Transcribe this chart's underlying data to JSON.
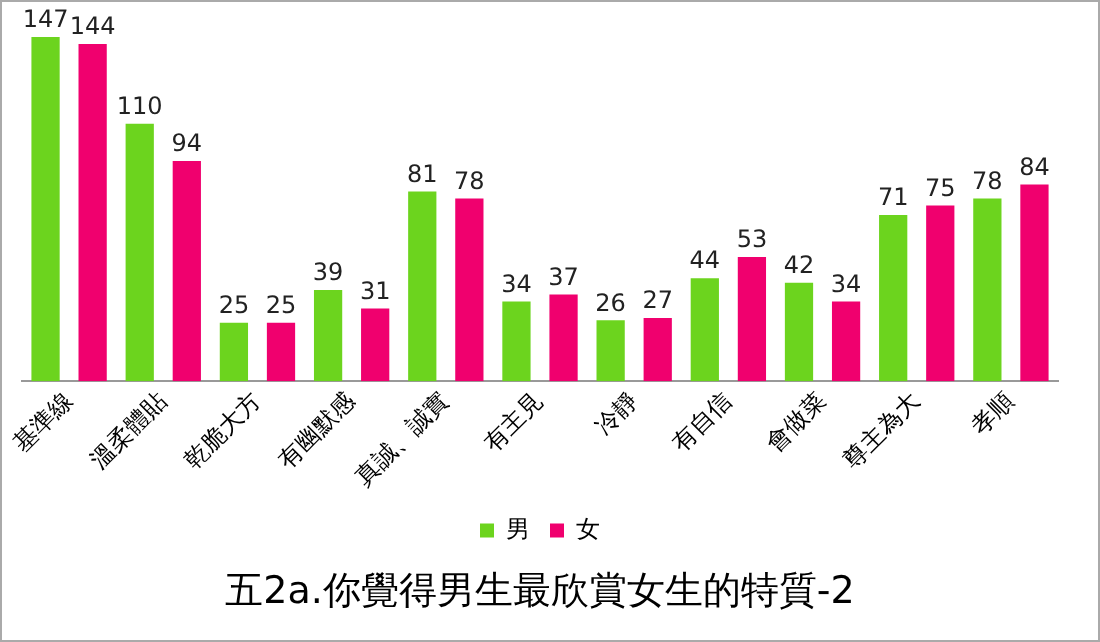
{
  "chart_data": {
    "type": "bar",
    "title": "五2a.你覺得男生最欣賞女生的特質-2",
    "categories": [
      "基準線",
      "溫柔體貼",
      "乾脆大方",
      "有幽默感",
      "真誠、誠實",
      "有主見",
      "冷靜",
      "有自信",
      "會做菜",
      "尊主為大",
      "孝順"
    ],
    "series": [
      {
        "name": "男",
        "color": "#6cd41e",
        "values": [
          147,
          110,
          25,
          39,
          81,
          34,
          26,
          44,
          42,
          71,
          78
        ]
      },
      {
        "name": "女",
        "color": "#f0006e",
        "values": [
          144,
          94,
          25,
          31,
          78,
          37,
          27,
          53,
          34,
          75,
          84
        ]
      }
    ],
    "ylim": [
      0,
      150
    ],
    "tick_labels": "x",
    "grid": false,
    "legend": "bottom",
    "data_labels": true
  }
}
